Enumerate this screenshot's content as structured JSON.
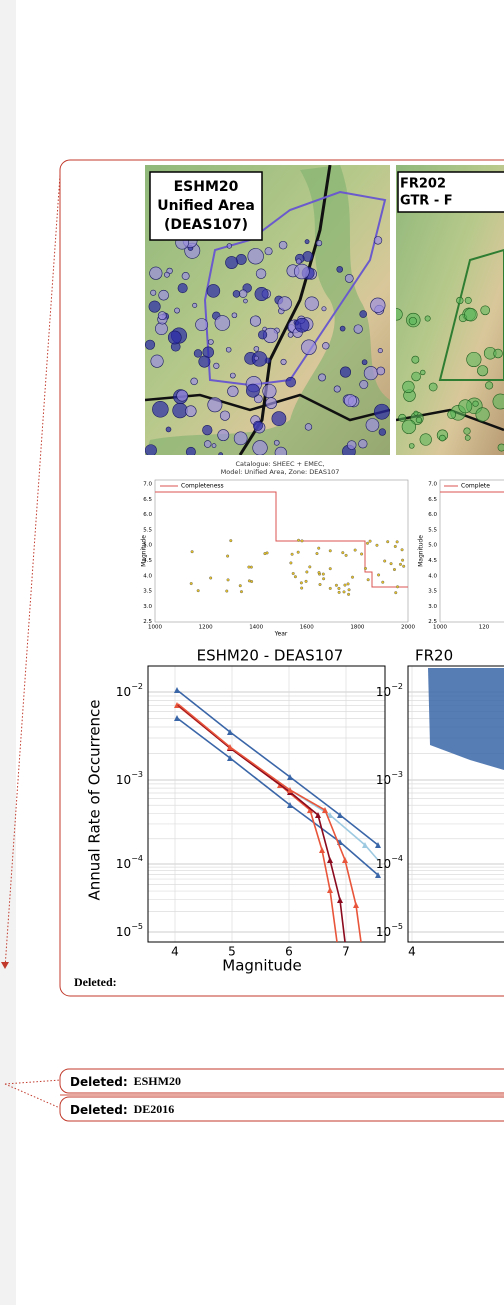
{
  "figure": {
    "maps": [
      {
        "label_lines": [
          "ESHM20",
          "Unified Area",
          "(DEAS107)"
        ]
      },
      {
        "label_lines": [
          "FR202",
          "GTR - F"
        ]
      }
    ],
    "completeness_plots": [
      {
        "title_lines": [
          "Catalogue: SHEEC + EMEC,",
          "Model: Unified Area,  Zone: DEAS107"
        ],
        "legend": "Completeness",
        "ylabel": "Magnitude",
        "xlabel": "Year",
        "xticks": [
          "1000",
          "1200",
          "1400",
          "1600",
          "1800",
          "2000"
        ],
        "yticks": [
          "7.0",
          "6.5",
          "6.0",
          "5.5",
          "5.0",
          "4.5",
          "4.0",
          "3.5",
          "3.0",
          "2.5"
        ]
      },
      {
        "legend": "Complete",
        "ylabel": "Magnitude",
        "xticks": [
          "1000",
          "120"
        ],
        "yticks": [
          "7.0",
          "6.5",
          "6.0",
          "5.5",
          "5.0",
          "4.5",
          "4.0",
          "3.5",
          "3.0",
          "2.5"
        ]
      }
    ],
    "rate_plots": [
      {
        "title": "ESHM20 - DEAS107",
        "ylabel": "Annual Rate of Occurrence",
        "xlabel": "Magnitude",
        "yticks": [
          {
            "base": "10",
            "exp": "−2"
          },
          {
            "base": "10",
            "exp": "−3"
          },
          {
            "base": "10",
            "exp": "−4"
          },
          {
            "base": "10",
            "exp": "−5"
          }
        ],
        "xticks": [
          "4",
          "5",
          "6",
          "7"
        ]
      },
      {
        "title": "FR20",
        "yticks": [
          {
            "base": "10",
            "exp": "−2"
          },
          {
            "base": "10",
            "exp": "−3"
          },
          {
            "base": "10",
            "exp": "−4"
          },
          {
            "base": "10",
            "exp": "−5"
          }
        ],
        "xticks": [
          "4"
        ]
      }
    ]
  },
  "comments": [
    {
      "label": "Deleted:"
    },
    {
      "label": "Deleted:",
      "text": "ESHM20"
    },
    {
      "label": "Deleted:",
      "text": "DE2016"
    }
  ]
}
